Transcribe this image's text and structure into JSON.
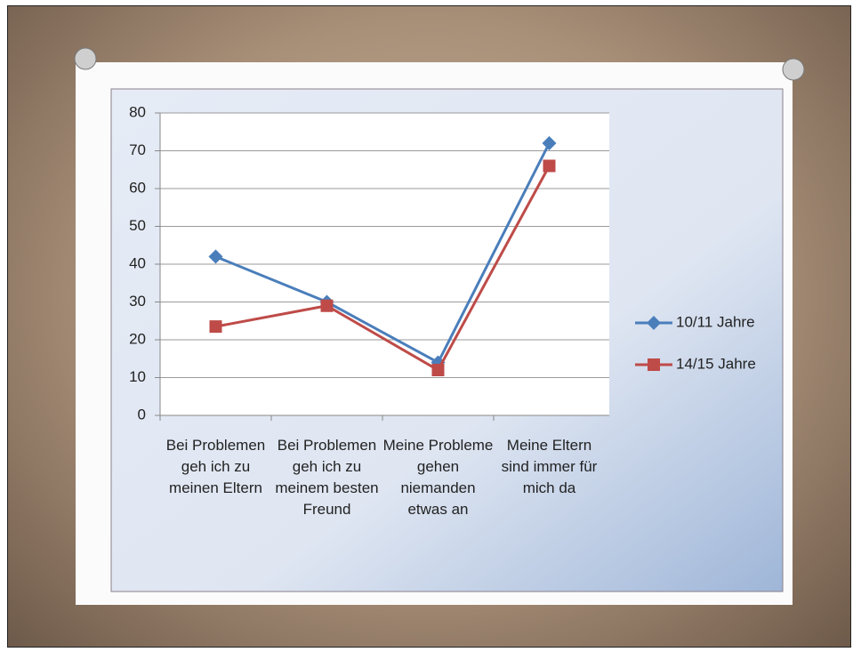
{
  "chart_data": {
    "type": "line",
    "categories": [
      "Bei Problemen geh ich zu meinen Eltern",
      "Bei Problemen geh ich zu meinem besten Freund",
      "Meine Probleme gehen niemanden etwas an",
      "Meine Eltern sind immer für mich da"
    ],
    "series": [
      {
        "name": "10/11 Jahre",
        "color": "#4a7ebb",
        "marker": "diamond",
        "values": [
          42,
          30,
          14,
          72
        ]
      },
      {
        "name": "14/15 Jahre",
        "color": "#be4b48",
        "marker": "square",
        "values": [
          23.5,
          29,
          12,
          66
        ]
      }
    ],
    "ylim": [
      0,
      80
    ],
    "yticks": [
      0,
      10,
      20,
      30,
      40,
      50,
      60,
      70,
      80
    ],
    "grid": true,
    "legend": "right"
  }
}
